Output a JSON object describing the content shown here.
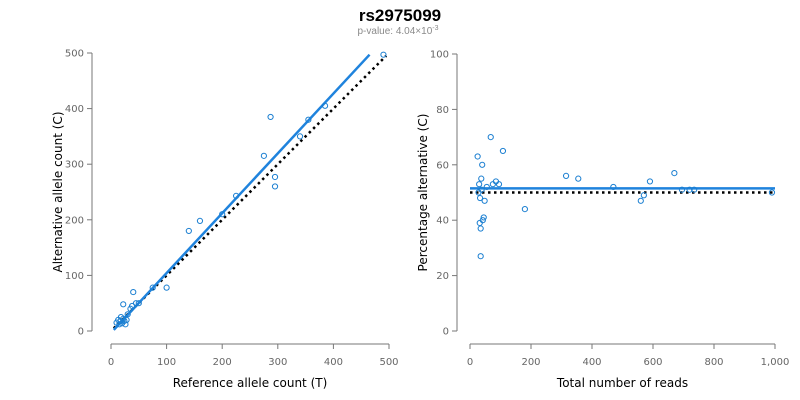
{
  "header": {
    "title": "rs2975099",
    "subtitle_prefix": "p-value: 4.04×10",
    "subtitle_exp": "-3"
  },
  "chart_data": [
    {
      "type": "scatter",
      "id": "left",
      "xlabel": "Reference allele count (T)",
      "ylabel": "Alternative allele count (C)",
      "xlim": [
        0,
        500
      ],
      "ylim": [
        0,
        500
      ],
      "xticks": [
        0,
        100,
        200,
        300,
        400,
        500
      ],
      "yticks": [
        0,
        100,
        200,
        300,
        400,
        500
      ],
      "xtick_labels": [
        "0",
        "100",
        "200",
        "300",
        "400",
        "500"
      ],
      "ytick_labels": [
        "0",
        "100",
        "200",
        "300",
        "400",
        "500"
      ],
      "points": [
        [
          10,
          15
        ],
        [
          13,
          20
        ],
        [
          15,
          12
        ],
        [
          17,
          18
        ],
        [
          18,
          25
        ],
        [
          20,
          14
        ],
        [
          22,
          22
        ],
        [
          24,
          18
        ],
        [
          26,
          12
        ],
        [
          28,
          20
        ],
        [
          30,
          30
        ],
        [
          35,
          40
        ],
        [
          38,
          45
        ],
        [
          40,
          70
        ],
        [
          45,
          50
        ],
        [
          50,
          50
        ],
        [
          22,
          48
        ],
        [
          75,
          78
        ],
        [
          100,
          78
        ],
        [
          140,
          180
        ],
        [
          160,
          198
        ],
        [
          200,
          210
        ],
        [
          225,
          243
        ],
        [
          275,
          315
        ],
        [
          287,
          385
        ],
        [
          295,
          260
        ],
        [
          295,
          277
        ],
        [
          340,
          350
        ],
        [
          355,
          380
        ],
        [
          385,
          405
        ],
        [
          490,
          497
        ]
      ],
      "fit_line": [
        [
          5,
          2
        ],
        [
          465,
          497
        ]
      ],
      "reference_line": [
        [
          5,
          5
        ],
        [
          495,
          495
        ]
      ]
    },
    {
      "type": "scatter",
      "id": "right",
      "xlabel": "Total number of reads",
      "ylabel": "Percentage alternative (C)",
      "xlim": [
        0,
        1000
      ],
      "ylim": [
        0,
        100
      ],
      "xticks": [
        0,
        200,
        400,
        600,
        800,
        1000
      ],
      "yticks": [
        0,
        20,
        40,
        60,
        80,
        100
      ],
      "xtick_labels": [
        "0",
        "200",
        "400",
        "600",
        "800",
        "1,000"
      ],
      "ytick_labels": [
        "0",
        "20",
        "40",
        "60",
        "80",
        "100"
      ],
      "points": [
        [
          25,
          63
        ],
        [
          28,
          50
        ],
        [
          30,
          53
        ],
        [
          32,
          39
        ],
        [
          33,
          48
        ],
        [
          35,
          27
        ],
        [
          35,
          37
        ],
        [
          37,
          55
        ],
        [
          38,
          51
        ],
        [
          40,
          60
        ],
        [
          42,
          40
        ],
        [
          45,
          41
        ],
        [
          48,
          47
        ],
        [
          55,
          52
        ],
        [
          68,
          70
        ],
        [
          75,
          53
        ],
        [
          85,
          54
        ],
        [
          95,
          53
        ],
        [
          108,
          65
        ],
        [
          180,
          44
        ],
        [
          315,
          56
        ],
        [
          355,
          55
        ],
        [
          470,
          52
        ],
        [
          560,
          47
        ],
        [
          570,
          49
        ],
        [
          590,
          54
        ],
        [
          670,
          57
        ],
        [
          695,
          51
        ],
        [
          720,
          51
        ],
        [
          735,
          51
        ],
        [
          990,
          50
        ]
      ],
      "fit_line": [
        [
          0,
          51.5
        ],
        [
          1000,
          51.5
        ]
      ],
      "reference_line": [
        [
          0,
          50
        ],
        [
          1000,
          50
        ]
      ]
    }
  ]
}
